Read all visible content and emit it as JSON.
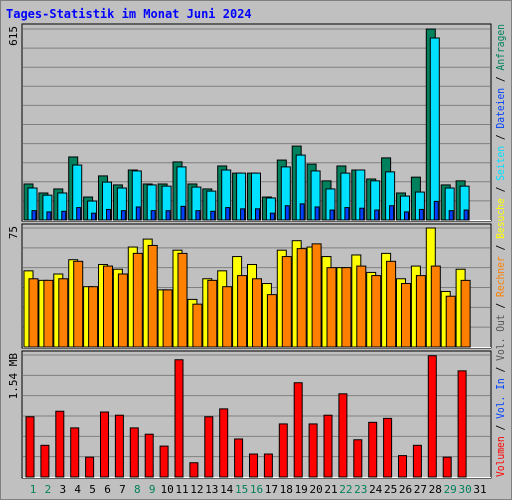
{
  "title": "Tages-Statistik im Monat Juni 2024",
  "legend_separator": " / ",
  "chart_data": [
    {
      "type": "bar",
      "ylim": [
        0,
        615
      ],
      "yticks": [
        615
      ],
      "series": [
        {
          "name": "Anfragen",
          "color": "#00805c",
          "values": [
            116,
            87,
            100,
            203,
            74,
            142,
            113,
            161,
            116,
            116,
            187,
            116,
            100,
            174,
            151,
            151,
            74,
            193,
            238,
            180,
            126,
            174,
            161,
            132,
            200,
            87,
            138,
            615,
            113,
            126,
            null
          ]
        },
        {
          "name": "Dateien",
          "color": "#0040ff",
          "values": [
            30,
            26,
            28,
            40,
            22,
            34,
            30,
            42,
            30,
            30,
            44,
            30,
            28,
            40,
            36,
            36,
            22,
            46,
            52,
            42,
            32,
            40,
            38,
            32,
            46,
            26,
            34,
            60,
            30,
            32,
            null
          ]
        },
        {
          "name": "Seiten",
          "color": "#00e0ff",
          "values": [
            103,
            80,
            87,
            177,
            61,
            122,
            103,
            158,
            113,
            109,
            171,
            106,
            93,
            161,
            151,
            151,
            71,
            171,
            209,
            158,
            100,
            151,
            161,
            126,
            155,
            77,
            90,
            586,
            103,
            109,
            null
          ]
        }
      ]
    },
    {
      "type": "bar",
      "ylim": [
        0,
        75
      ],
      "yticks": [
        75
      ],
      "series": [
        {
          "name": "Besuche",
          "color": "#ffff00",
          "values": [
            48,
            42,
            46,
            55,
            38,
            52,
            49,
            63,
            68,
            36,
            61,
            30,
            43,
            48,
            57,
            52,
            40,
            61,
            67,
            63,
            57,
            50,
            58,
            47,
            59,
            43,
            51,
            75,
            35,
            49,
            null
          ]
        },
        {
          "name": "Rechner",
          "color": "#ff8000",
          "values": [
            43,
            42,
            43,
            54,
            38,
            51,
            46,
            59,
            64,
            36,
            59,
            27,
            42,
            38,
            45,
            43,
            33,
            57,
            62,
            65,
            50,
            50,
            51,
            45,
            54,
            40,
            45,
            51,
            32,
            42,
            null
          ]
        }
      ]
    },
    {
      "type": "bar",
      "ylim": [
        0,
        1.54
      ],
      "yticks": [
        {
          "value": 1.54,
          "label": "1.54 MB"
        }
      ],
      "categories": [
        "1",
        "2",
        "3",
        "4",
        "5",
        "6",
        "7",
        "8",
        "9",
        "10",
        "11",
        "12",
        "13",
        "14",
        "15",
        "16",
        "17",
        "18",
        "19",
        "20",
        "21",
        "22",
        "23",
        "24",
        "25",
        "26",
        "27",
        "28",
        "29",
        "30",
        "31"
      ],
      "category_colors": [
        "#00805c",
        "#00805c",
        "#000000",
        "#000000",
        "#000000",
        "#000000",
        "#000000",
        "#00805c",
        "#00805c",
        "#000000",
        "#000000",
        "#000000",
        "#000000",
        "#000000",
        "#00805c",
        "#00805c",
        "#000000",
        "#000000",
        "#000000",
        "#000000",
        "#000000",
        "#00805c",
        "#00805c",
        "#000000",
        "#000000",
        "#000000",
        "#000000",
        "#000000",
        "#00805c",
        "#00805c",
        "#000000"
      ],
      "series": [
        {
          "name": "Vol. Out",
          "color": "#555555"
        },
        {
          "name": "Vol. In",
          "color": "#0040ff"
        },
        {
          "name": "Volumen",
          "color": "#ff0000",
          "values": [
            0.76,
            0.4,
            0.83,
            0.62,
            0.25,
            0.82,
            0.78,
            0.62,
            0.54,
            0.39,
            1.48,
            0.18,
            0.76,
            0.86,
            0.48,
            0.29,
            0.29,
            0.67,
            1.19,
            0.67,
            0.78,
            1.05,
            0.47,
            0.69,
            0.74,
            0.27,
            0.4,
            1.53,
            0.25,
            1.34,
            null
          ]
        }
      ]
    }
  ]
}
